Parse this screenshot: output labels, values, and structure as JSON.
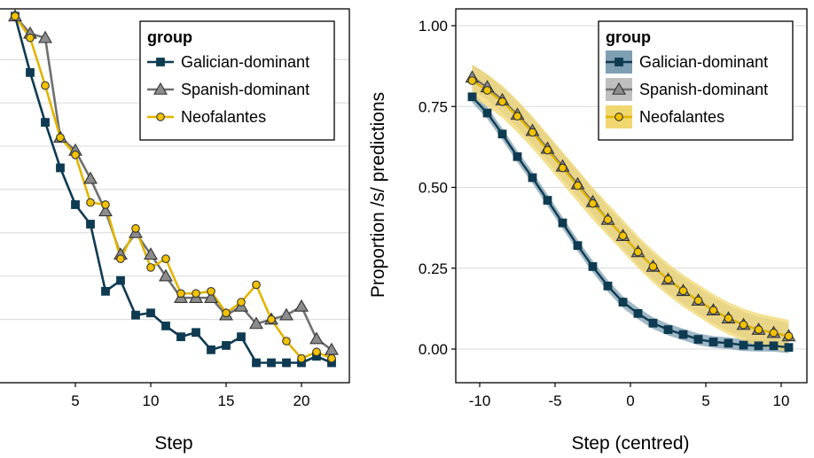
{
  "colors": {
    "galician": "#0e3b52",
    "spanish": "#707070",
    "neofalantes": "#e0b500",
    "galician_ribbon": "#7f9fb2",
    "spanish_ribbon": "#bfbfbf",
    "neofalantes_ribbon": "#f1d770"
  },
  "chart_data": [
    {
      "type": "line",
      "xlabel": "Step",
      "ylabel": "",
      "xlim": [
        0,
        23
      ],
      "x_ticks": [
        5,
        10,
        15,
        20
      ],
      "x_tick_labels": [
        "5",
        "10",
        "15",
        "20"
      ],
      "grid": true,
      "legend_placement": "top-right",
      "legend": {
        "title": "group",
        "entries": [
          "Galician-dominant",
          "Spanish-dominant",
          "Neofalantes"
        ]
      },
      "x": [
        1,
        2,
        3,
        4,
        5,
        6,
        7,
        8,
        9,
        10,
        11,
        12,
        13,
        14,
        15,
        16,
        17,
        18,
        19,
        20,
        21,
        22
      ],
      "series": [
        {
          "name": "Galician-dominant",
          "marker": "square",
          "values": [
            1.0,
            0.87,
            0.755,
            0.65,
            0.565,
            0.52,
            0.365,
            0.39,
            0.31,
            0.315,
            0.285,
            0.26,
            0.27,
            0.23,
            0.24,
            0.26,
            0.2,
            0.2,
            0.2,
            0.2,
            0.215,
            0.2
          ]
        },
        {
          "name": "Spanish-dominant",
          "marker": "triangle",
          "values": [
            1.0,
            0.96,
            0.95,
            0.72,
            0.69,
            0.625,
            0.55,
            0.45,
            0.5,
            0.45,
            0.4,
            0.35,
            0.35,
            0.35,
            0.31,
            0.33,
            0.29,
            0.3,
            0.31,
            0.33,
            0.255,
            0.23
          ]
        },
        {
          "name": "Neofalantes",
          "marker": "circle",
          "values": [
            1.0,
            0.95,
            0.84,
            0.72,
            0.68,
            0.57,
            0.565,
            0.44,
            0.51,
            0.42,
            0.44,
            0.36,
            0.36,
            0.365,
            0.315,
            0.34,
            0.38,
            0.3,
            0.25,
            0.21,
            0.225,
            0.21
          ]
        }
      ]
    },
    {
      "type": "line",
      "xlabel": "Step (centred)",
      "ylabel": "Proportion /s/ predictions",
      "xlim": [
        -11.5,
        11.5
      ],
      "ylim": [
        -0.1,
        1.05
      ],
      "x_ticks": [
        -10,
        -5,
        0,
        5,
        10
      ],
      "x_tick_labels": [
        "-10",
        "-5",
        "0",
        "5",
        "10"
      ],
      "y_ticks": [
        0,
        0.25,
        0.5,
        0.75,
        1.0
      ],
      "y_tick_labels": [
        "0.00",
        "0.25",
        "0.50",
        "0.75",
        "1.00"
      ],
      "grid": true,
      "legend_placement": "top-right",
      "legend": {
        "title": "group",
        "entries": [
          "Galician-dominant",
          "Spanish-dominant",
          "Neofalantes"
        ]
      },
      "x": [
        -10.5,
        -9.5,
        -8.5,
        -7.5,
        -6.5,
        -5.5,
        -4.5,
        -3.5,
        -2.5,
        -1.5,
        -0.5,
        0.5,
        1.5,
        2.5,
        3.5,
        4.5,
        5.5,
        6.5,
        7.5,
        8.5,
        9.5,
        10.5
      ],
      "series": [
        {
          "name": "Galician-dominant",
          "marker": "square",
          "ribbon_halfwidth": 0.018,
          "values": [
            0.78,
            0.73,
            0.665,
            0.595,
            0.53,
            0.46,
            0.39,
            0.32,
            0.255,
            0.195,
            0.145,
            0.11,
            0.08,
            0.06,
            0.045,
            0.03,
            0.022,
            0.018,
            0.012,
            0.01,
            0.01,
            0.005
          ]
        },
        {
          "name": "Spanish-dominant",
          "marker": "triangle",
          "ribbon_halfwidth": 0.04,
          "values": [
            0.84,
            0.81,
            0.77,
            0.725,
            0.675,
            0.62,
            0.565,
            0.51,
            0.455,
            0.4,
            0.35,
            0.3,
            0.255,
            0.215,
            0.18,
            0.15,
            0.12,
            0.095,
            0.075,
            0.06,
            0.05,
            0.04
          ]
        },
        {
          "name": "Neofalantes",
          "marker": "circle",
          "ribbon_halfwidth": 0.05,
          "values": [
            0.83,
            0.8,
            0.765,
            0.72,
            0.67,
            0.615,
            0.56,
            0.505,
            0.45,
            0.4,
            0.35,
            0.3,
            0.255,
            0.215,
            0.18,
            0.15,
            0.12,
            0.095,
            0.075,
            0.06,
            0.05,
            0.04
          ]
        }
      ]
    }
  ]
}
